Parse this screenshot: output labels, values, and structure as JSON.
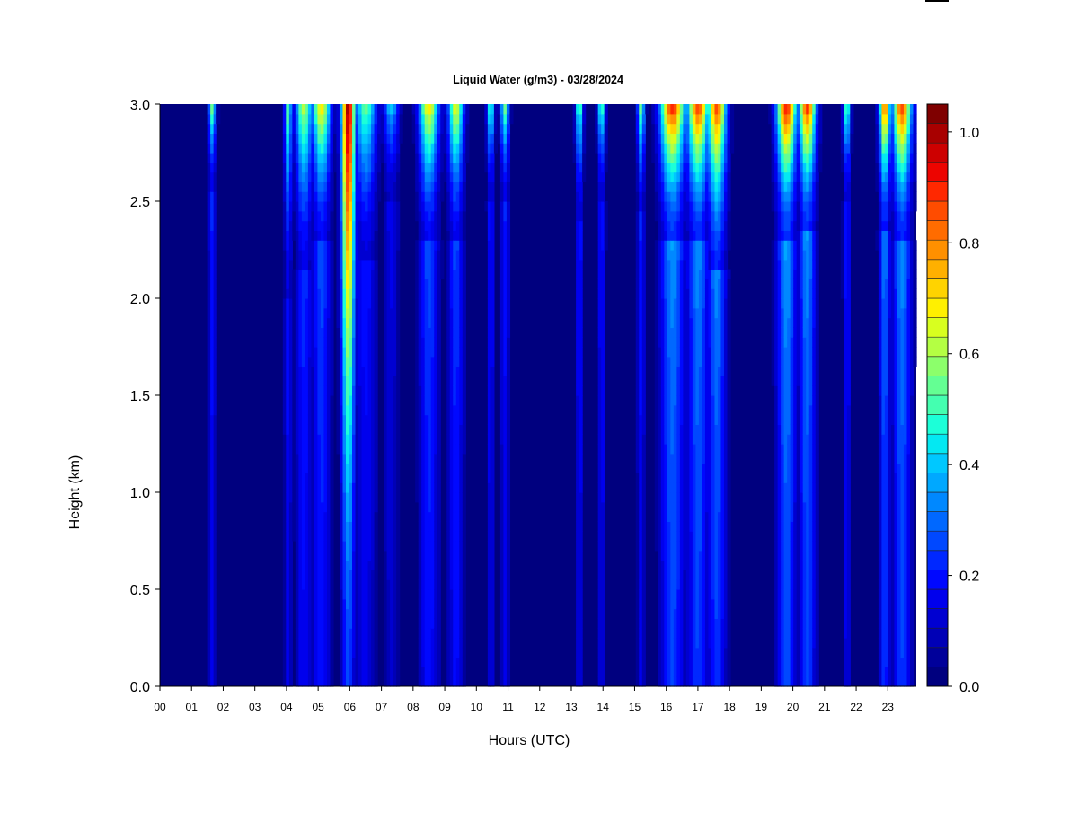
{
  "chart_data": {
    "type": "heatmap",
    "title": "Liquid Water (g/m3) - 03/28/2024",
    "xlabel": "Hours (UTC)",
    "ylabel": "Height (km)",
    "x_ticks": [
      "00",
      "01",
      "02",
      "03",
      "04",
      "05",
      "06",
      "07",
      "08",
      "09",
      "10",
      "11",
      "12",
      "13",
      "14",
      "15",
      "16",
      "17",
      "18",
      "19",
      "20",
      "21",
      "22",
      "23"
    ],
    "xlim": [
      0,
      23.9
    ],
    "y_ticks": [
      "0.0",
      "0.5",
      "1.0",
      "1.5",
      "2.0",
      "2.5",
      "3.0"
    ],
    "ylim": [
      0,
      3.0
    ],
    "colorbar": {
      "ticks": [
        "0.0",
        "0.2",
        "0.4",
        "0.6",
        "0.8",
        "1.0"
      ],
      "range": [
        0,
        1.05
      ],
      "levels": 21,
      "colors": [
        "#00007f",
        "#00009a",
        "#0000b6",
        "#0000d1",
        "#0000ed",
        "#0008ff",
        "#0028ff",
        "#0048ff",
        "#0068ff",
        "#0088ff",
        "#00a8ff",
        "#00c8ff",
        "#04e8f2",
        "#1cffd8",
        "#44ffb0",
        "#64ff93",
        "#8cff6b",
        "#b4ff43",
        "#d8ff1f",
        "#fff000",
        "#ffd300",
        "#ffb000",
        "#ff9000",
        "#ff6c00",
        "#ff4c00",
        "#ff2800",
        "#ed0400",
        "#cd0000",
        "#a80000",
        "#7f0000"
      ]
    },
    "cloud_events": [
      {
        "hour": 1.65,
        "halfwidth": 0.13,
        "peak": 0.58,
        "base": 2.55
      },
      {
        "hour": 4.05,
        "halfwidth": 0.12,
        "peak": 0.55,
        "base": 2.0
      },
      {
        "hour": 4.55,
        "halfwidth": 0.28,
        "peak": 0.62,
        "base": 2.15
      },
      {
        "hour": 5.1,
        "halfwidth": 0.3,
        "peak": 0.72,
        "base": 2.3
      },
      {
        "hour": 5.95,
        "halfwidth": 0.22,
        "peak": 1.02,
        "base": 0.0
      },
      {
        "hour": 6.5,
        "halfwidth": 0.35,
        "peak": 0.55,
        "base": 2.2
      },
      {
        "hour": 7.3,
        "halfwidth": 0.25,
        "peak": 0.42,
        "base": 2.5
      },
      {
        "hour": 8.5,
        "halfwidth": 0.32,
        "peak": 0.72,
        "base": 2.3
      },
      {
        "hour": 9.35,
        "halfwidth": 0.25,
        "peak": 0.68,
        "base": 2.3
      },
      {
        "hour": 10.45,
        "halfwidth": 0.12,
        "peak": 0.55,
        "base": 2.5
      },
      {
        "hour": 10.9,
        "halfwidth": 0.14,
        "peak": 0.56,
        "base": 2.5
      },
      {
        "hour": 13.25,
        "halfwidth": 0.12,
        "peak": 0.55,
        "base": 2.4
      },
      {
        "hour": 13.95,
        "halfwidth": 0.12,
        "peak": 0.55,
        "base": 2.5
      },
      {
        "hour": 15.2,
        "halfwidth": 0.12,
        "peak": 0.58,
        "base": 2.45
      },
      {
        "hour": 16.2,
        "halfwidth": 0.4,
        "peak": 0.92,
        "base": 2.3
      },
      {
        "hour": 17.0,
        "halfwidth": 0.35,
        "peak": 0.9,
        "base": 2.3
      },
      {
        "hour": 17.6,
        "halfwidth": 0.3,
        "peak": 0.88,
        "base": 2.15
      },
      {
        "hour": 19.8,
        "halfwidth": 0.32,
        "peak": 0.95,
        "base": 2.3
      },
      {
        "hour": 20.45,
        "halfwidth": 0.28,
        "peak": 0.92,
        "base": 2.35
      },
      {
        "hour": 21.7,
        "halfwidth": 0.12,
        "peak": 0.58,
        "base": 2.5
      },
      {
        "hour": 22.9,
        "halfwidth": 0.18,
        "peak": 0.85,
        "base": 2.35
      },
      {
        "hour": 23.45,
        "halfwidth": 0.3,
        "peak": 0.9,
        "base": 2.3
      }
    ],
    "grid": false,
    "legend": "colorbar-right"
  }
}
